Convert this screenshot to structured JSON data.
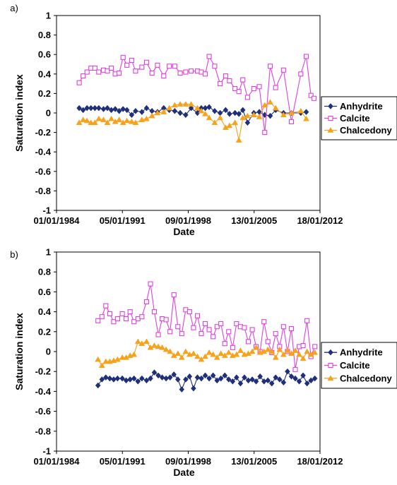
{
  "colors": {
    "Anhydrite": "#1f2f7a",
    "Calcite": "#e040e0",
    "Chalcedony": "#f7a21a"
  },
  "chart_data": [
    {
      "panel": "a)",
      "type": "line",
      "xlabel": "Date",
      "ylabel": "Saturation index",
      "ylim": [
        -1,
        1
      ],
      "xlim": [
        "1984-01-01",
        "2012-01-18"
      ],
      "yticks": [
        "1",
        "0.8",
        "0.6",
        "0.4",
        "0.2",
        "0",
        "-0.2",
        "-0.4",
        "-0.6",
        "-0.8",
        "-1"
      ],
      "xticks": [
        "01/01/1984",
        "05/01/1991",
        "09/01/1998",
        "13/01/2005",
        "18/01/2012"
      ],
      "legend_position": "right",
      "series": [
        {
          "name": "Anhydrite",
          "marker": "diamond",
          "x": [
            "1986-06-01",
            "1986-11-01",
            "1987-04-01",
            "1987-09-01",
            "1988-02-01",
            "1988-07-01",
            "1989-01-01",
            "1989-06-01",
            "1989-11-01",
            "1990-04-01",
            "1990-09-01",
            "1991-02-01",
            "1991-07-01",
            "1992-01-01",
            "1992-06-01",
            "1993-02-01",
            "1993-08-01",
            "1994-03-01",
            "1994-10-01",
            "1995-06-01",
            "1996-01-01",
            "1996-08-01",
            "1997-03-01",
            "1997-10-01",
            "1998-05-01",
            "1999-01-01",
            "1999-06-01",
            "1999-11-01",
            "2000-04-01",
            "2000-11-01",
            "2001-06-01",
            "2002-01-01",
            "2002-06-01",
            "2003-01-01",
            "2003-06-01",
            "2003-11-01",
            "2004-05-01",
            "2005-01-01",
            "2005-08-01",
            "2006-03-01",
            "2006-10-01",
            "2007-05-01",
            "2008-03-01",
            "2009-01-01",
            "2010-01-01",
            "2010-08-01"
          ],
          "values": [
            0.05,
            0.03,
            0.05,
            0.05,
            0.05,
            0.05,
            0.04,
            0.05,
            0.03,
            0.04,
            0.02,
            0.04,
            0.03,
            -0.02,
            0.02,
            0.01,
            0.05,
            0.02,
            0.01,
            0.05,
            0.03,
            0.02,
            0.0,
            -0.02,
            0.05,
            0.0,
            0.05,
            0.05,
            0.06,
            0.02,
            0.0,
            0.03,
            -0.01,
            0.0,
            -0.01,
            0.03,
            -0.1,
            0.0,
            0.01,
            -0.02,
            -0.03,
            0.03,
            0.0,
            0.0,
            0.0,
            0.01
          ]
        },
        {
          "name": "Calcite",
          "marker": "square",
          "x": [
            "1986-06-01",
            "1986-11-01",
            "1987-04-01",
            "1987-09-01",
            "1988-02-01",
            "1988-07-01",
            "1989-01-01",
            "1989-06-01",
            "1989-11-01",
            "1990-04-01",
            "1990-09-01",
            "1991-02-01",
            "1991-07-01",
            "1992-01-01",
            "1992-06-01",
            "1993-02-01",
            "1993-08-01",
            "1994-03-01",
            "1994-10-01",
            "1995-06-01",
            "1996-01-01",
            "1996-08-01",
            "1997-03-01",
            "1997-10-01",
            "1998-05-01",
            "1999-01-01",
            "1999-06-01",
            "1999-11-01",
            "2000-04-01",
            "2000-11-01",
            "2001-06-01",
            "2002-01-01",
            "2002-06-01",
            "2003-01-01",
            "2003-06-01",
            "2003-11-01",
            "2004-05-01",
            "2005-01-01",
            "2005-08-01",
            "2006-03-01",
            "2006-10-01",
            "2007-05-01",
            "2008-03-01",
            "2009-01-01",
            "2010-01-01",
            "2010-08-01",
            "2011-02-01",
            "2011-06-01"
          ],
          "values": [
            0.31,
            0.38,
            0.42,
            0.46,
            0.46,
            0.42,
            0.44,
            0.43,
            0.46,
            0.4,
            0.41,
            0.57,
            0.49,
            0.54,
            0.43,
            0.47,
            0.52,
            0.41,
            0.49,
            0.38,
            0.48,
            0.48,
            0.41,
            0.42,
            0.43,
            0.43,
            0.42,
            0.4,
            0.58,
            0.48,
            0.3,
            0.38,
            0.33,
            0.25,
            0.22,
            0.34,
            0.16,
            0.25,
            0.27,
            -0.2,
            0.48,
            0.26,
            0.44,
            -0.09,
            0.4,
            0.58,
            0.18,
            0.15
          ]
        },
        {
          "name": "Chalcedony",
          "marker": "triangle",
          "x": [
            "1986-06-01",
            "1986-11-01",
            "1987-04-01",
            "1987-09-01",
            "1988-02-01",
            "1988-07-01",
            "1989-01-01",
            "1989-06-01",
            "1989-11-01",
            "1990-04-01",
            "1990-09-01",
            "1991-02-01",
            "1991-07-01",
            "1992-01-01",
            "1992-06-01",
            "1993-02-01",
            "1993-08-01",
            "1994-03-01",
            "1994-10-01",
            "1995-06-01",
            "1996-01-01",
            "1996-08-01",
            "1997-03-01",
            "1997-10-01",
            "1998-05-01",
            "1999-01-01",
            "1999-06-01",
            "1999-11-01",
            "2000-04-01",
            "2000-11-01",
            "2001-06-01",
            "2002-01-01",
            "2002-06-01",
            "2003-01-01",
            "2003-06-01",
            "2003-11-01",
            "2004-05-01",
            "2005-01-01",
            "2005-08-01",
            "2006-03-01",
            "2006-10-01",
            "2007-05-01",
            "2008-03-01",
            "2009-01-01",
            "2010-01-01",
            "2010-08-01"
          ],
          "values": [
            -0.1,
            -0.07,
            -0.08,
            -0.1,
            -0.1,
            -0.06,
            -0.07,
            -0.1,
            -0.06,
            -0.09,
            -0.07,
            -0.1,
            -0.08,
            -0.09,
            -0.1,
            -0.07,
            -0.06,
            -0.03,
            0.0,
            0.01,
            0.05,
            0.08,
            0.09,
            0.09,
            0.09,
            0.05,
            0.02,
            -0.01,
            -0.05,
            -0.1,
            -0.05,
            -0.15,
            -0.13,
            -0.1,
            -0.28,
            -0.05,
            -0.03,
            -0.02,
            -0.04,
            0.08,
            0.11,
            0.05,
            -0.02,
            0.0,
            0.02,
            -0.06
          ]
        }
      ]
    },
    {
      "panel": "b)",
      "type": "line",
      "xlabel": "Date",
      "ylabel": "Saturation index",
      "ylim": [
        -1,
        1
      ],
      "xlim": [
        "1984-01-01",
        "2012-01-18"
      ],
      "yticks": [
        "1",
        "0.8",
        "0.6",
        "0.4",
        "0.2",
        "0",
        "-0.2",
        "-0.4",
        "-0.6",
        "-0.8",
        "-1"
      ],
      "xticks": [
        "01/01/1984",
        "05/01/1991",
        "09/01/1998",
        "13/01/2005",
        "18/01/2012"
      ],
      "legend_position": "right",
      "series": [
        {
          "name": "Anhydrite",
          "marker": "diamond",
          "x": [
            "1988-06-01",
            "1988-11-01",
            "1989-04-01",
            "1989-09-01",
            "1990-02-01",
            "1990-07-01",
            "1991-01-01",
            "1991-06-01",
            "1991-11-01",
            "1992-04-01",
            "1992-09-01",
            "1993-02-01",
            "1993-08-01",
            "1994-01-01",
            "1994-06-01",
            "1994-11-01",
            "1995-04-01",
            "1995-09-01",
            "1996-02-01",
            "1996-07-01",
            "1996-12-01",
            "1997-05-01",
            "1997-10-01",
            "1998-03-01",
            "1998-08-01",
            "1999-01-01",
            "1999-06-01",
            "1999-11-01",
            "2000-04-01",
            "2000-09-01",
            "2001-02-01",
            "2001-07-01",
            "2001-12-01",
            "2002-05-01",
            "2002-10-01",
            "2003-03-01",
            "2003-08-01",
            "2004-01-01",
            "2004-06-01",
            "2004-11-01",
            "2005-04-01",
            "2005-09-01",
            "2006-02-01",
            "2006-07-01",
            "2006-12-01",
            "2007-05-01",
            "2007-10-01",
            "2008-03-01",
            "2008-08-01",
            "2009-01-01",
            "2009-06-01",
            "2009-11-01",
            "2010-04-01",
            "2010-09-01",
            "2011-02-01",
            "2011-07-01"
          ],
          "values": [
            -0.34,
            -0.28,
            -0.26,
            -0.27,
            -0.28,
            -0.27,
            -0.27,
            -0.29,
            -0.28,
            -0.27,
            -0.3,
            -0.27,
            -0.29,
            -0.27,
            -0.21,
            -0.24,
            -0.26,
            -0.27,
            -0.26,
            -0.23,
            -0.28,
            -0.38,
            -0.28,
            -0.25,
            -0.37,
            -0.26,
            -0.27,
            -0.24,
            -0.27,
            -0.24,
            -0.29,
            -0.27,
            -0.24,
            -0.28,
            -0.3,
            -0.26,
            -0.32,
            -0.26,
            -0.29,
            -0.28,
            -0.3,
            -0.25,
            -0.3,
            -0.29,
            -0.32,
            -0.26,
            -0.28,
            -0.31,
            -0.2,
            -0.25,
            -0.27,
            -0.3,
            -0.24,
            -0.32,
            -0.29,
            -0.27
          ]
        },
        {
          "name": "Calcite",
          "marker": "square",
          "x": [
            "1988-06-01",
            "1988-11-01",
            "1989-04-01",
            "1989-09-01",
            "1990-02-01",
            "1990-07-01",
            "1991-01-01",
            "1991-06-01",
            "1991-11-01",
            "1992-04-01",
            "1992-09-01",
            "1993-02-01",
            "1993-08-01",
            "1994-01-01",
            "1994-06-01",
            "1994-11-01",
            "1995-04-01",
            "1995-09-01",
            "1996-02-01",
            "1996-07-01",
            "1996-12-01",
            "1997-05-01",
            "1997-10-01",
            "1998-03-01",
            "1998-08-01",
            "1999-01-01",
            "1999-06-01",
            "1999-11-01",
            "2000-04-01",
            "2000-09-01",
            "2001-02-01",
            "2001-07-01",
            "2001-12-01",
            "2002-05-01",
            "2002-10-01",
            "2003-03-01",
            "2003-08-01",
            "2004-01-01",
            "2004-06-01",
            "2004-11-01",
            "2005-04-01",
            "2005-09-01",
            "2006-02-01",
            "2006-07-01",
            "2006-12-01",
            "2007-05-01",
            "2007-10-01",
            "2008-03-01",
            "2008-08-01",
            "2009-01-01",
            "2009-06-01",
            "2009-11-01",
            "2010-04-01",
            "2010-09-01",
            "2011-02-01",
            "2011-07-01"
          ],
          "values": [
            0.31,
            0.35,
            0.46,
            0.38,
            0.3,
            0.33,
            0.38,
            0.33,
            0.4,
            0.3,
            0.33,
            0.35,
            0.5,
            0.68,
            0.4,
            0.17,
            0.33,
            0.32,
            0.2,
            0.57,
            0.25,
            0.18,
            0.42,
            0.4,
            0.24,
            0.36,
            0.18,
            0.28,
            0.22,
            0.15,
            0.25,
            0.28,
            0.08,
            0.2,
            0.04,
            0.28,
            0.25,
            0.24,
            0.1,
            0.22,
            0.05,
            0.0,
            0.3,
            0.1,
            -0.01,
            0.18,
            0.05,
            0.25,
            0.0,
            0.23,
            -0.18,
            0.05,
            0.06,
            0.31,
            -0.05,
            0.05
          ]
        },
        {
          "name": "Chalcedony",
          "marker": "triangle",
          "x": [
            "1988-06-01",
            "1988-11-01",
            "1989-04-01",
            "1989-09-01",
            "1990-02-01",
            "1990-07-01",
            "1991-01-01",
            "1991-06-01",
            "1991-11-01",
            "1992-04-01",
            "1992-09-01",
            "1993-02-01",
            "1993-08-01",
            "1994-01-01",
            "1994-06-01",
            "1994-11-01",
            "1995-04-01",
            "1995-09-01",
            "1996-02-01",
            "1996-07-01",
            "1996-12-01",
            "1997-05-01",
            "1997-10-01",
            "1998-03-01",
            "1998-08-01",
            "1999-01-01",
            "1999-06-01",
            "1999-11-01",
            "2000-04-01",
            "2000-09-01",
            "2001-02-01",
            "2001-07-01",
            "2001-12-01",
            "2002-05-01",
            "2002-10-01",
            "2003-03-01",
            "2003-08-01",
            "2004-01-01",
            "2004-06-01",
            "2004-11-01",
            "2005-04-01",
            "2005-09-01",
            "2006-02-01",
            "2006-07-01",
            "2006-12-01",
            "2007-05-01",
            "2007-10-01",
            "2008-03-01",
            "2008-08-01",
            "2009-01-01",
            "2009-06-01",
            "2009-11-01",
            "2010-04-01",
            "2010-09-01",
            "2011-02-01",
            "2011-07-01"
          ],
          "values": [
            -0.08,
            -0.14,
            -0.1,
            -0.1,
            -0.09,
            -0.08,
            -0.06,
            -0.06,
            -0.04,
            -0.03,
            0.1,
            0.08,
            0.1,
            0.04,
            0.06,
            0.05,
            0.04,
            0.02,
            0.0,
            -0.04,
            -0.02,
            -0.06,
            0.0,
            -0.03,
            -0.02,
            -0.05,
            -0.08,
            -0.05,
            -0.01,
            -0.03,
            -0.06,
            -0.02,
            -0.04,
            -0.01,
            -0.04,
            -0.03,
            0.01,
            -0.03,
            -0.02,
            0.0,
            0.04,
            -0.01,
            0.0,
            0.02,
            0.0,
            -0.06,
            0.02,
            -0.03,
            0.01,
            -0.02,
            0.01,
            -0.03,
            -0.07,
            0.0,
            -0.03,
            -0.01
          ]
        }
      ]
    }
  ]
}
